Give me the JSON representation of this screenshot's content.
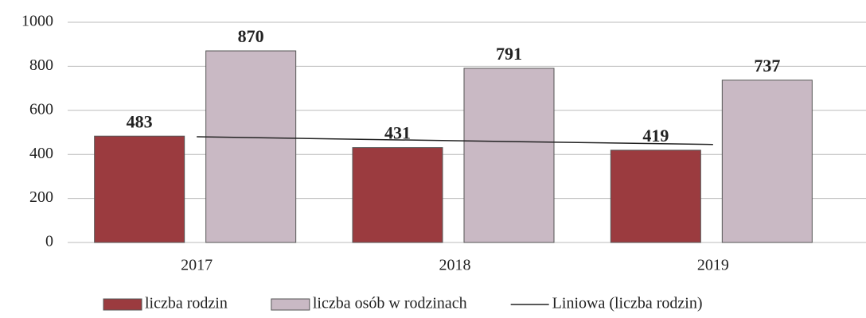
{
  "chart_data": {
    "type": "bar",
    "categories": [
      "2017",
      "2018",
      "2019"
    ],
    "series": [
      {
        "name": "liczba rodzin",
        "color": "#9b3b3f",
        "values": [
          483,
          431,
          419
        ]
      },
      {
        "name": "liczba osób w rodzinach",
        "color": "#c9b9c4",
        "values": [
          870,
          791,
          737
        ]
      },
      {
        "name": "Liniowa (liczba rodzin)",
        "type": "line",
        "color": "#222222",
        "values": [
          480,
          462,
          445
        ]
      }
    ],
    "ylim": [
      0,
      1000
    ],
    "yticks": [
      0,
      200,
      400,
      600,
      800,
      1000
    ],
    "grid": true,
    "legend": "bottom"
  }
}
